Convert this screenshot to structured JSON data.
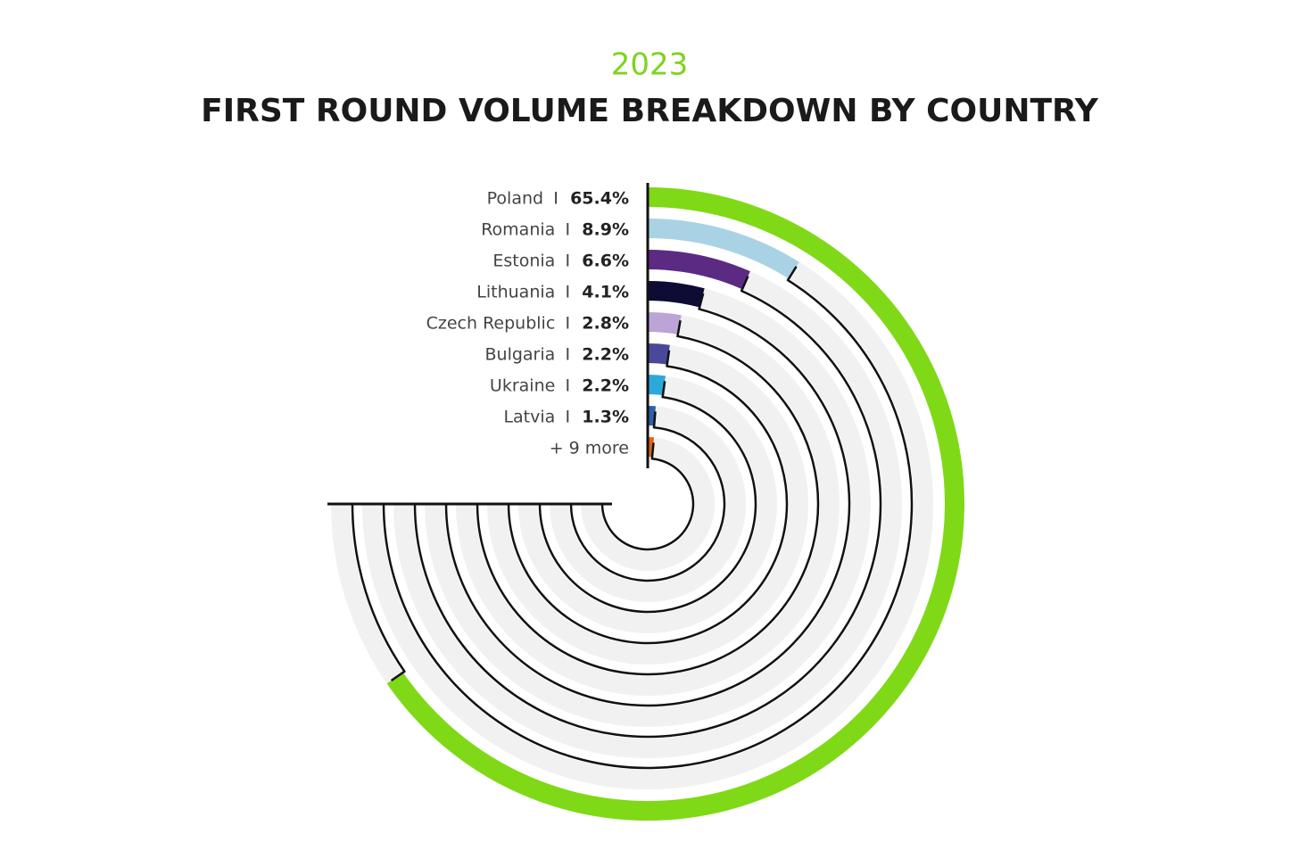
{
  "chart_data": {
    "type": "radial-bar",
    "subtitle": "2023",
    "title": "FIRST ROUND VOLUME BREAKDOWN BY COUNTRY",
    "separator": "I",
    "categories": [
      "Poland",
      "Romania",
      "Estonia",
      "Lithuania",
      "Czech Republic",
      "Bulgaria",
      "Ukraine",
      "Latvia",
      "+ 9 more"
    ],
    "values": [
      65.4,
      8.9,
      6.6,
      4.1,
      2.8,
      2.2,
      2.2,
      1.3,
      1.5
    ],
    "value_labels": [
      "65.4%",
      "8.9%",
      "6.6%",
      "4.1%",
      "2.8%",
      "2.2%",
      "2.2%",
      "1.3%",
      null
    ],
    "colors": [
      "#7fd916",
      "#a9d3e4",
      "#5b2b83",
      "#0e0c35",
      "#bca4d7",
      "#4a4898",
      "#2aa9da",
      "#2e5fa9",
      "#e0650f"
    ],
    "max": 100
  }
}
